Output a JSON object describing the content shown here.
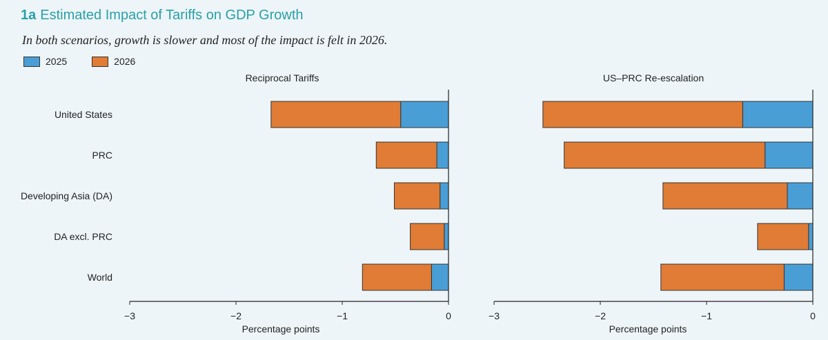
{
  "figure": {
    "number": "1a",
    "title": "Estimated Impact of Tariffs on GDP Growth",
    "subtitle": "In both scenarios, growth is slower and most of the impact is felt in 2026."
  },
  "colors": {
    "y2025": "#4a9ed6",
    "y2026": "#e07c35"
  },
  "legend": [
    {
      "label": "2025",
      "color_key": "y2025"
    },
    {
      "label": "2026",
      "color_key": "y2026"
    }
  ],
  "chart_data": [
    {
      "type": "bar",
      "orientation": "horizontal",
      "stacked": true,
      "title": "Reciprocal Tariffs",
      "xlabel": "Percentage points",
      "xlim": [
        -3,
        0
      ],
      "xticks": [
        -3,
        -2,
        -1,
        0
      ],
      "xtick_labels": [
        "−3",
        "−2",
        "−1",
        "0"
      ],
      "categories": [
        "United States",
        "PRC",
        "Developing Asia (DA)",
        "DA excl. PRC",
        "World"
      ],
      "series": [
        {
          "name": "2025",
          "values": [
            -0.45,
            -0.11,
            -0.08,
            -0.04,
            -0.16
          ]
        },
        {
          "name": "2026",
          "values": [
            -1.22,
            -0.57,
            -0.43,
            -0.32,
            -0.65
          ]
        }
      ]
    },
    {
      "type": "bar",
      "orientation": "horizontal",
      "stacked": true,
      "title": "US–PRC Re-escalation",
      "xlabel": "Percentage points",
      "xlim": [
        -3,
        0
      ],
      "xticks": [
        -3,
        -2,
        -1,
        0
      ],
      "xtick_labels": [
        "−3",
        "−2",
        "−1",
        "0"
      ],
      "categories": [
        "United States",
        "PRC",
        "Developing Asia (DA)",
        "DA excl. PRC",
        "World"
      ],
      "series": [
        {
          "name": "2025",
          "values": [
            -0.66,
            -0.45,
            -0.24,
            -0.04,
            -0.27
          ]
        },
        {
          "name": "2026",
          "values": [
            -1.88,
            -1.89,
            -1.17,
            -0.48,
            -1.16
          ]
        }
      ]
    }
  ]
}
